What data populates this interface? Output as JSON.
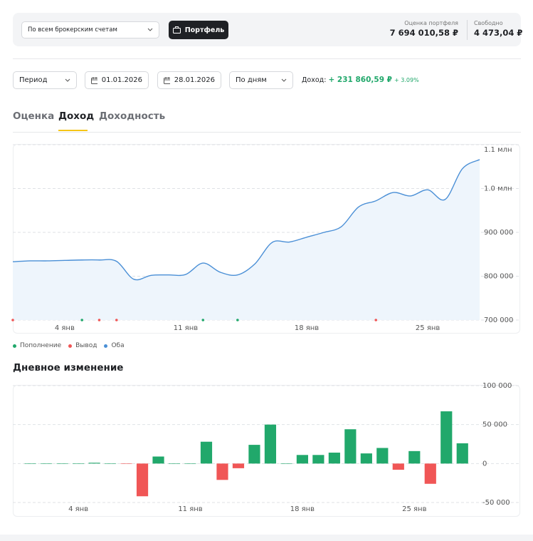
{
  "header": {
    "account_select": "По всем брокерским счетам",
    "portfolio_button": "Портфель",
    "portfolio_label": "Оценка портфеля",
    "portfolio_value": "7 694 010,58 ₽",
    "free_label": "Свободно",
    "free_value": "4 473,04 ₽"
  },
  "filters": {
    "period": "Период",
    "date_from": "01.01.2026",
    "date_to": "28.01.2026",
    "granularity": "По дням",
    "income_label": "Доход:",
    "income_value": "+ 231 860,59 ₽",
    "income_percent": "+ 3.09%"
  },
  "tabs": {
    "items": [
      "Оценка",
      "Доход",
      "Доходность"
    ],
    "active": 1
  },
  "chart_data": [
    {
      "type": "line",
      "color": "#4a8fd6",
      "area_color": "#eef5fc",
      "categories": [
        null,
        null,
        null,
        "4 янв",
        null,
        null,
        null,
        null,
        null,
        null,
        "11 янв",
        null,
        null,
        null,
        null,
        null,
        null,
        "18 янв",
        null,
        null,
        null,
        null,
        null,
        null,
        "25 янв",
        null,
        null,
        null
      ],
      "values": [
        833000,
        835000,
        835000,
        836000,
        837000,
        837000,
        834000,
        793000,
        802000,
        803000,
        804000,
        830000,
        809000,
        803000,
        828000,
        877000,
        878000,
        889000,
        900000,
        913000,
        958000,
        972000,
        991000,
        983000,
        997000,
        975000,
        1045000,
        1066000
      ],
      "series": [
        {
          "name": "Пополнение",
          "color": "#21a86b",
          "values": [
            null,
            null,
            null,
            null,
            700000,
            null,
            null,
            null,
            null,
            null,
            null,
            700000,
            null,
            700000,
            null,
            null,
            null,
            null,
            null,
            null,
            null,
            null,
            null,
            null,
            null,
            null,
            null,
            null
          ]
        },
        {
          "name": "Вывод",
          "color": "#f05656",
          "values": [
            700000,
            null,
            null,
            null,
            null,
            700000,
            700000,
            null,
            null,
            null,
            null,
            null,
            null,
            null,
            null,
            null,
            null,
            null,
            null,
            null,
            null,
            700000,
            null,
            null,
            null,
            null,
            null,
            null
          ]
        },
        {
          "name": "Оба",
          "color": "#4a8fd6",
          "values": [
            null,
            null,
            null,
            null,
            null,
            null,
            null,
            null,
            null,
            null,
            null,
            null,
            null,
            null,
            null,
            null,
            null,
            null,
            null,
            null,
            null,
            null,
            null,
            null,
            null,
            null,
            null,
            null
          ]
        }
      ],
      "ylim": [
        700000,
        1100000
      ],
      "yticks": [
        {
          "value": 700000,
          "label": "700 000"
        },
        {
          "value": 800000,
          "label": "800 000"
        },
        {
          "value": 900000,
          "label": "900 000"
        },
        {
          "value": 1000000,
          "label": "1.0 млн"
        },
        {
          "value": 1100000,
          "label": "1.1 млн"
        }
      ],
      "grid": true
    },
    {
      "type": "bar",
      "title": "Дневное изменение",
      "positive_color": "#21a86b",
      "negative_color": "#f05656",
      "categories": [
        null,
        null,
        null,
        "4 янв",
        null,
        null,
        null,
        null,
        null,
        null,
        "11 янв",
        null,
        null,
        null,
        null,
        null,
        null,
        "18 янв",
        null,
        null,
        null,
        null,
        null,
        null,
        "25 янв",
        null,
        null,
        null
      ],
      "values": [
        0,
        0,
        0,
        0,
        1000,
        0,
        -500,
        -42000,
        9000,
        0,
        0,
        28000,
        -21000,
        -6000,
        24000,
        50000,
        0,
        11000,
        11000,
        14000,
        44000,
        13000,
        20000,
        -8000,
        16000,
        -26000,
        67000,
        26000
      ],
      "ylim": [
        -50000,
        100000
      ],
      "yticks": [
        {
          "value": -50000,
          "label": "-50 000"
        },
        0,
        {
          "value": 50000,
          "label": "50 000"
        },
        {
          "value": 100000,
          "label": "100 000"
        }
      ],
      "grid": true
    }
  ]
}
